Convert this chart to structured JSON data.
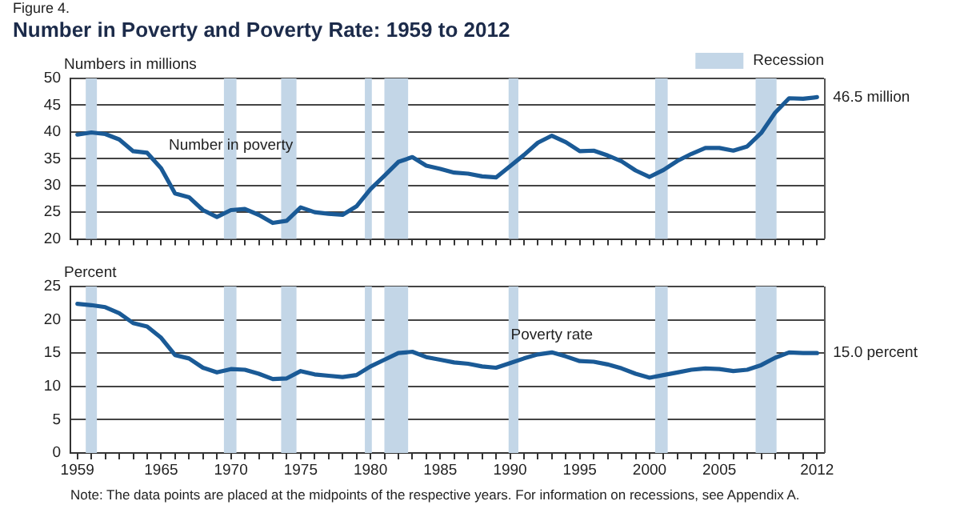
{
  "chart_data": [
    {
      "type": "line",
      "title": "Number in Poverty and Poverty Rate: 1959 to 2012",
      "ylabel": "Numbers in millions",
      "annotations": [
        "Figure 4.",
        {
          "text": "Number in poverty",
          "x": 1970,
          "y": 36
        }
      ],
      "x": [
        1959,
        1960,
        1961,
        1962,
        1963,
        1964,
        1965,
        1966,
        1967,
        1968,
        1969,
        1970,
        1971,
        1972,
        1973,
        1974,
        1975,
        1976,
        1977,
        1978,
        1979,
        1980,
        1981,
        1982,
        1983,
        1984,
        1985,
        1986,
        1987,
        1988,
        1989,
        1990,
        1991,
        1992,
        1993,
        1994,
        1995,
        1996,
        1997,
        1998,
        1999,
        2000,
        2001,
        2002,
        2003,
        2004,
        2005,
        2006,
        2007,
        2008,
        2009,
        2010,
        2011,
        2012
      ],
      "series": [
        {
          "color": "#1a5a96",
          "values": [
            39.5,
            39.9,
            39.6,
            38.6,
            36.4,
            36.1,
            33.2,
            28.5,
            27.8,
            25.4,
            24.1,
            25.4,
            25.6,
            24.5,
            23.0,
            23.4,
            25.9,
            25.0,
            24.7,
            24.5,
            26.1,
            29.3,
            31.8,
            34.4,
            35.3,
            33.7,
            33.1,
            32.4,
            32.2,
            31.7,
            31.5,
            33.6,
            35.7,
            38.0,
            39.3,
            38.1,
            36.4,
            36.5,
            35.6,
            34.5,
            32.8,
            31.6,
            32.9,
            34.6,
            35.9,
            37.0,
            37.0,
            36.5,
            37.3,
            39.8,
            43.6,
            46.3,
            46.2,
            46.5
          ],
          "value_labels": [
            null,
            null,
            null,
            null,
            null,
            null,
            null,
            null,
            null,
            null,
            null,
            null,
            null,
            null,
            null,
            null,
            null,
            null,
            null,
            null,
            null,
            null,
            null,
            null,
            null,
            null,
            null,
            null,
            null,
            null,
            null,
            null,
            null,
            null,
            null,
            null,
            null,
            null,
            null,
            null,
            null,
            null,
            null,
            null,
            null,
            null,
            null,
            null,
            null,
            null,
            null,
            null,
            null,
            "46.5 million"
          ]
        }
      ],
      "bands": [
        {
          "axis": "x",
          "from": 1959.6,
          "to": 1960.4,
          "label": "Recession",
          "color": "#c3d6e7"
        },
        {
          "axis": "x",
          "from": 1969.5,
          "to": 1970.4,
          "color": "#c3d6e7"
        },
        {
          "axis": "x",
          "from": 1973.6,
          "to": 1974.7,
          "color": "#c3d6e7"
        },
        {
          "axis": "x",
          "from": 1979.6,
          "to": 1980.1,
          "color": "#c3d6e7"
        },
        {
          "axis": "x",
          "from": 1981.0,
          "to": 1982.7,
          "color": "#c3d6e7"
        },
        {
          "axis": "x",
          "from": 1989.9,
          "to": 1990.6,
          "color": "#c3d6e7"
        },
        {
          "axis": "x",
          "from": 2000.4,
          "to": 2001.3,
          "color": "#c3d6e7"
        },
        {
          "axis": "x",
          "from": 2007.6,
          "to": 2009.1,
          "color": "#c3d6e7"
        }
      ],
      "xlim": [
        1958.5,
        2012.5
      ],
      "xticks": [
        1959,
        {
          "value": 1960,
          "label": null
        },
        {
          "value": 1961,
          "label": null
        },
        {
          "value": 1962,
          "label": null
        },
        {
          "value": 1963,
          "label": null
        },
        {
          "value": 1964,
          "label": null
        },
        1965,
        {
          "value": 1966,
          "label": null
        },
        {
          "value": 1967,
          "label": null
        },
        {
          "value": 1968,
          "label": null
        },
        {
          "value": 1969,
          "label": null
        },
        1970,
        {
          "value": 1971,
          "label": null
        },
        {
          "value": 1972,
          "label": null
        },
        {
          "value": 1973,
          "label": null
        },
        {
          "value": 1974,
          "label": null
        },
        1975,
        {
          "value": 1976,
          "label": null
        },
        {
          "value": 1977,
          "label": null
        },
        {
          "value": 1978,
          "label": null
        },
        {
          "value": 1979,
          "label": null
        },
        1980,
        {
          "value": 1981,
          "label": null
        },
        {
          "value": 1982,
          "label": null
        },
        {
          "value": 1983,
          "label": null
        },
        {
          "value": 1984,
          "label": null
        },
        1985,
        {
          "value": 1986,
          "label": null
        },
        {
          "value": 1987,
          "label": null
        },
        {
          "value": 1988,
          "label": null
        },
        {
          "value": 1989,
          "label": null
        },
        1990,
        {
          "value": 1991,
          "label": null
        },
        {
          "value": 1992,
          "label": null
        },
        {
          "value": 1993,
          "label": null
        },
        {
          "value": 1994,
          "label": null
        },
        1995,
        {
          "value": 1996,
          "label": null
        },
        {
          "value": 1997,
          "label": null
        },
        {
          "value": 1998,
          "label": null
        },
        {
          "value": 1999,
          "label": null
        },
        2000,
        {
          "value": 2001,
          "label": null
        },
        {
          "value": 2002,
          "label": null
        },
        {
          "value": 2003,
          "label": null
        },
        {
          "value": 2004,
          "label": null
        },
        2005,
        {
          "value": 2006,
          "label": null
        },
        {
          "value": 2007,
          "label": null
        },
        {
          "value": 2008,
          "label": null
        },
        {
          "value": 2009,
          "label": null
        },
        {
          "value": 2010,
          "label": null
        },
        {
          "value": 2011,
          "label": null
        },
        2012
      ],
      "ylim": [
        20,
        50
      ],
      "yticks": [
        20,
        25,
        30,
        35,
        40,
        45,
        50
      ],
      "grid": "y",
      "legend": "top right",
      "marker": "none",
      "line_style": "solid",
      "tick_labels": "y"
    },
    {
      "type": "line",
      "ylabel": "Percent",
      "annotations": [
        {
          "text": "Poverty rate",
          "x": 1993,
          "y": 16.5
        },
        "Note: The data points are placed at the midpoints of the respective years. For information on recessions, see Appendix A."
      ],
      "x": [
        1959,
        1960,
        1961,
        1962,
        1963,
        1964,
        1965,
        1966,
        1967,
        1968,
        1969,
        1970,
        1971,
        1972,
        1973,
        1974,
        1975,
        1976,
        1977,
        1978,
        1979,
        1980,
        1981,
        1982,
        1983,
        1984,
        1985,
        1986,
        1987,
        1988,
        1989,
        1990,
        1991,
        1992,
        1993,
        1994,
        1995,
        1996,
        1997,
        1998,
        1999,
        2000,
        2001,
        2002,
        2003,
        2004,
        2005,
        2006,
        2007,
        2008,
        2009,
        2010,
        2011,
        2012
      ],
      "series": [
        {
          "color": "#1a5a96",
          "values": [
            22.4,
            22.2,
            21.9,
            21.0,
            19.5,
            19.0,
            17.3,
            14.7,
            14.2,
            12.8,
            12.1,
            12.6,
            12.5,
            11.9,
            11.1,
            11.2,
            12.3,
            11.8,
            11.6,
            11.4,
            11.7,
            13.0,
            14.0,
            15.0,
            15.2,
            14.4,
            14.0,
            13.6,
            13.4,
            13.0,
            12.8,
            13.5,
            14.2,
            14.8,
            15.1,
            14.5,
            13.8,
            13.7,
            13.3,
            12.7,
            11.9,
            11.3,
            11.7,
            12.1,
            12.5,
            12.7,
            12.6,
            12.3,
            12.5,
            13.2,
            14.3,
            15.1,
            15.0,
            15.0
          ],
          "value_labels": [
            null,
            null,
            null,
            null,
            null,
            null,
            null,
            null,
            null,
            null,
            null,
            null,
            null,
            null,
            null,
            null,
            null,
            null,
            null,
            null,
            null,
            null,
            null,
            null,
            null,
            null,
            null,
            null,
            null,
            null,
            null,
            null,
            null,
            null,
            null,
            null,
            null,
            null,
            null,
            null,
            null,
            null,
            null,
            null,
            null,
            null,
            null,
            null,
            null,
            null,
            null,
            null,
            null,
            "15.0 percent"
          ]
        }
      ],
      "bands": [
        {
          "axis": "x",
          "from": 1959.6,
          "to": 1960.4,
          "color": "#c3d6e7"
        },
        {
          "axis": "x",
          "from": 1969.5,
          "to": 1970.4,
          "color": "#c3d6e7"
        },
        {
          "axis": "x",
          "from": 1973.6,
          "to": 1974.7,
          "color": "#c3d6e7"
        },
        {
          "axis": "x",
          "from": 1979.6,
          "to": 1980.1,
          "color": "#c3d6e7"
        },
        {
          "axis": "x",
          "from": 1981.0,
          "to": 1982.7,
          "color": "#c3d6e7"
        },
        {
          "axis": "x",
          "from": 1989.9,
          "to": 1990.6,
          "color": "#c3d6e7"
        },
        {
          "axis": "x",
          "from": 2000.4,
          "to": 2001.3,
          "color": "#c3d6e7"
        },
        {
          "axis": "x",
          "from": 2007.6,
          "to": 2009.1,
          "color": "#c3d6e7"
        }
      ],
      "xlim": [
        1958.5,
        2012.5
      ],
      "xticks": [
        1959,
        {
          "value": 1960,
          "label": null
        },
        {
          "value": 1961,
          "label": null
        },
        {
          "value": 1962,
          "label": null
        },
        {
          "value": 1963,
          "label": null
        },
        {
          "value": 1964,
          "label": null
        },
        1965,
        {
          "value": 1966,
          "label": null
        },
        {
          "value": 1967,
          "label": null
        },
        {
          "value": 1968,
          "label": null
        },
        {
          "value": 1969,
          "label": null
        },
        1970,
        {
          "value": 1971,
          "label": null
        },
        {
          "value": 1972,
          "label": null
        },
        {
          "value": 1973,
          "label": null
        },
        {
          "value": 1974,
          "label": null
        },
        1975,
        {
          "value": 1976,
          "label": null
        },
        {
          "value": 1977,
          "label": null
        },
        {
          "value": 1978,
          "label": null
        },
        {
          "value": 1979,
          "label": null
        },
        1980,
        {
          "value": 1981,
          "label": null
        },
        {
          "value": 1982,
          "label": null
        },
        {
          "value": 1983,
          "label": null
        },
        {
          "value": 1984,
          "label": null
        },
        1985,
        {
          "value": 1986,
          "label": null
        },
        {
          "value": 1987,
          "label": null
        },
        {
          "value": 1988,
          "label": null
        },
        {
          "value": 1989,
          "label": null
        },
        1990,
        {
          "value": 1991,
          "label": null
        },
        {
          "value": 1992,
          "label": null
        },
        {
          "value": 1993,
          "label": null
        },
        {
          "value": 1994,
          "label": null
        },
        1995,
        {
          "value": 1996,
          "label": null
        },
        {
          "value": 1997,
          "label": null
        },
        {
          "value": 1998,
          "label": null
        },
        {
          "value": 1999,
          "label": null
        },
        2000,
        {
          "value": 2001,
          "label": null
        },
        {
          "value": 2002,
          "label": null
        },
        {
          "value": 2003,
          "label": null
        },
        {
          "value": 2004,
          "label": null
        },
        2005,
        {
          "value": 2006,
          "label": null
        },
        {
          "value": 2007,
          "label": null
        },
        {
          "value": 2008,
          "label": null
        },
        {
          "value": 2009,
          "label": null
        },
        {
          "value": 2010,
          "label": null
        },
        {
          "value": 2011,
          "label": null
        },
        2012
      ],
      "ylim": [
        0,
        25
      ],
      "yticks": [
        0,
        5,
        10,
        15,
        20,
        25
      ],
      "grid": "y",
      "marker": "none",
      "line_style": "solid"
    }
  ]
}
